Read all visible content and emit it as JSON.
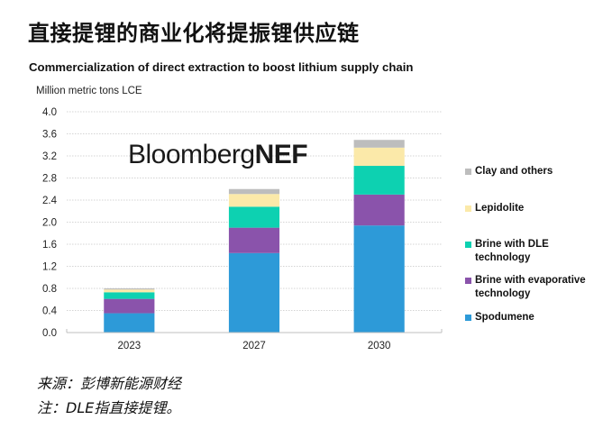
{
  "header": {
    "title": "直接提锂的商业化将提振锂供应链"
  },
  "logo": {
    "part1": "Bloomberg",
    "part2": "NEF"
  },
  "footer": {
    "source": "来源：彭博新能源财经",
    "note": "注：DLE指直接提锂。"
  },
  "chart_data": {
    "type": "bar",
    "stacked": true,
    "title": "Commercialization of direct extraction to boost lithium supply chain",
    "xlabel": "",
    "ylabel": "Million metric tons LCE",
    "categories": [
      "2023",
      "2027",
      "2030"
    ],
    "ylim": [
      0,
      4.0
    ],
    "yticks": [
      "0.0",
      "0.4",
      "0.8",
      "1.2",
      "1.6",
      "2.0",
      "2.4",
      "2.8",
      "3.2",
      "3.6",
      "4.0"
    ],
    "ytick_values": [
      0,
      0.4,
      0.8,
      1.2,
      1.6,
      2.0,
      2.4,
      2.8,
      3.2,
      3.6,
      4.0
    ],
    "grid": true,
    "legend_position": "right",
    "series": [
      {
        "name": "Spodumene",
        "color": "#2d9ad8",
        "values": [
          0.35,
          1.44,
          1.94
        ]
      },
      {
        "name": "Brine with evaporative technology",
        "color": "#8a53ab",
        "values": [
          0.26,
          0.46,
          0.56
        ]
      },
      {
        "name": "Brine with DLE technology",
        "color": "#0dd1b1",
        "values": [
          0.12,
          0.38,
          0.52
        ]
      },
      {
        "name": "Lepidolite",
        "color": "#fbe9a9",
        "values": [
          0.05,
          0.23,
          0.33
        ]
      },
      {
        "name": "Clay and others",
        "color": "#bdbdbd",
        "values": [
          0.02,
          0.09,
          0.14
        ]
      }
    ]
  }
}
